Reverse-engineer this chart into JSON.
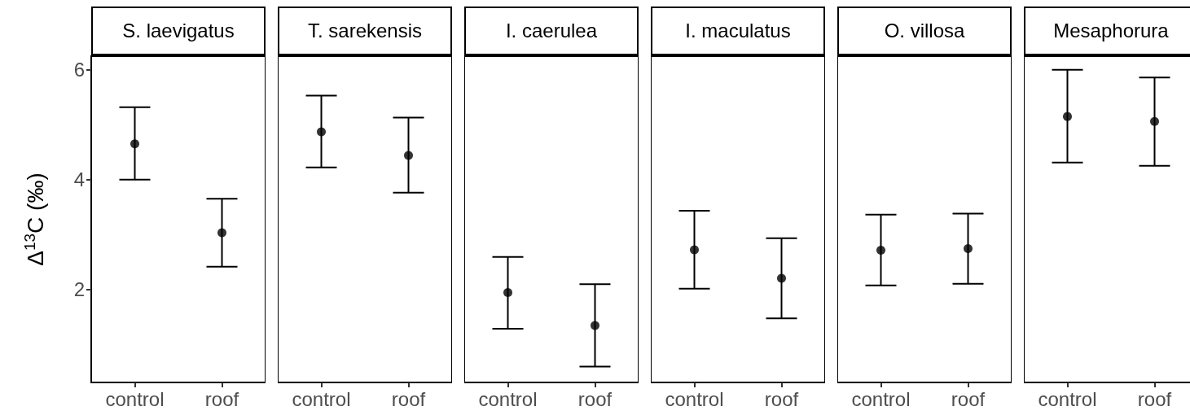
{
  "chart_data": [
    {
      "type": "scatter",
      "title": "S. laevigatus",
      "ylabel": "Δ$^{13}$C (‰)",
      "categories": [
        "control",
        "roof"
      ],
      "values": [
        4.65,
        3.03
      ],
      "errors": [
        [
          4.0,
          5.32
        ],
        [
          2.41,
          3.65
        ]
      ],
      "color": "#000000",
      "marker": "circle",
      "ylim": [
        0.3,
        6.25
      ],
      "yticks": [
        2,
        4,
        6
      ],
      "grid": false
    },
    {
      "type": "scatter",
      "title": "T. sarekensis",
      "categories": [
        "control",
        "roof"
      ],
      "values": [
        4.87,
        4.44
      ],
      "errors": [
        [
          4.22,
          5.53
        ],
        [
          3.76,
          5.13
        ]
      ],
      "color": "#000000",
      "marker": "circle",
      "ylim": [
        0.3,
        6.25
      ],
      "yticks": [
        2,
        4,
        6
      ],
      "grid": false,
      "tick_labels": "x"
    },
    {
      "type": "scatter",
      "title": "I. caerulea",
      "categories": [
        "control",
        "roof"
      ],
      "values": [
        1.94,
        1.34
      ],
      "errors": [
        [
          1.28,
          2.59
        ],
        [
          0.59,
          2.09
        ]
      ],
      "color": "#000000",
      "marker": "circle",
      "ylim": [
        0.3,
        6.25
      ],
      "yticks": [
        2,
        4,
        6
      ],
      "grid": false,
      "tick_labels": "x"
    },
    {
      "type": "scatter",
      "title": "I. maculatus",
      "categories": [
        "control",
        "roof"
      ],
      "values": [
        2.72,
        2.2
      ],
      "errors": [
        [
          2.01,
          3.43
        ],
        [
          1.47,
          2.93
        ]
      ],
      "color": "#000000",
      "marker": "circle",
      "ylim": [
        0.3,
        6.25
      ],
      "yticks": [
        2,
        4,
        6
      ],
      "grid": false,
      "tick_labels": "x"
    },
    {
      "type": "scatter",
      "title": "O. villosa",
      "categories": [
        "control",
        "roof"
      ],
      "values": [
        2.71,
        2.74
      ],
      "errors": [
        [
          2.07,
          3.36
        ],
        [
          2.1,
          3.38
        ]
      ],
      "color": "#000000",
      "marker": "circle",
      "ylim": [
        0.3,
        6.25
      ],
      "yticks": [
        2,
        4,
        6
      ],
      "grid": false,
      "tick_labels": "x"
    },
    {
      "type": "scatter",
      "title": "Mesaphorura",
      "categories": [
        "control",
        "roof"
      ],
      "values": [
        5.15,
        5.06
      ],
      "errors": [
        [
          4.31,
          6.0
        ],
        [
          4.25,
          5.86
        ]
      ],
      "color": "#000000",
      "marker": "circle",
      "ylim": [
        0.3,
        6.25
      ],
      "yticks": [
        2,
        4,
        6
      ],
      "grid": false,
      "tick_labels": "x"
    }
  ]
}
